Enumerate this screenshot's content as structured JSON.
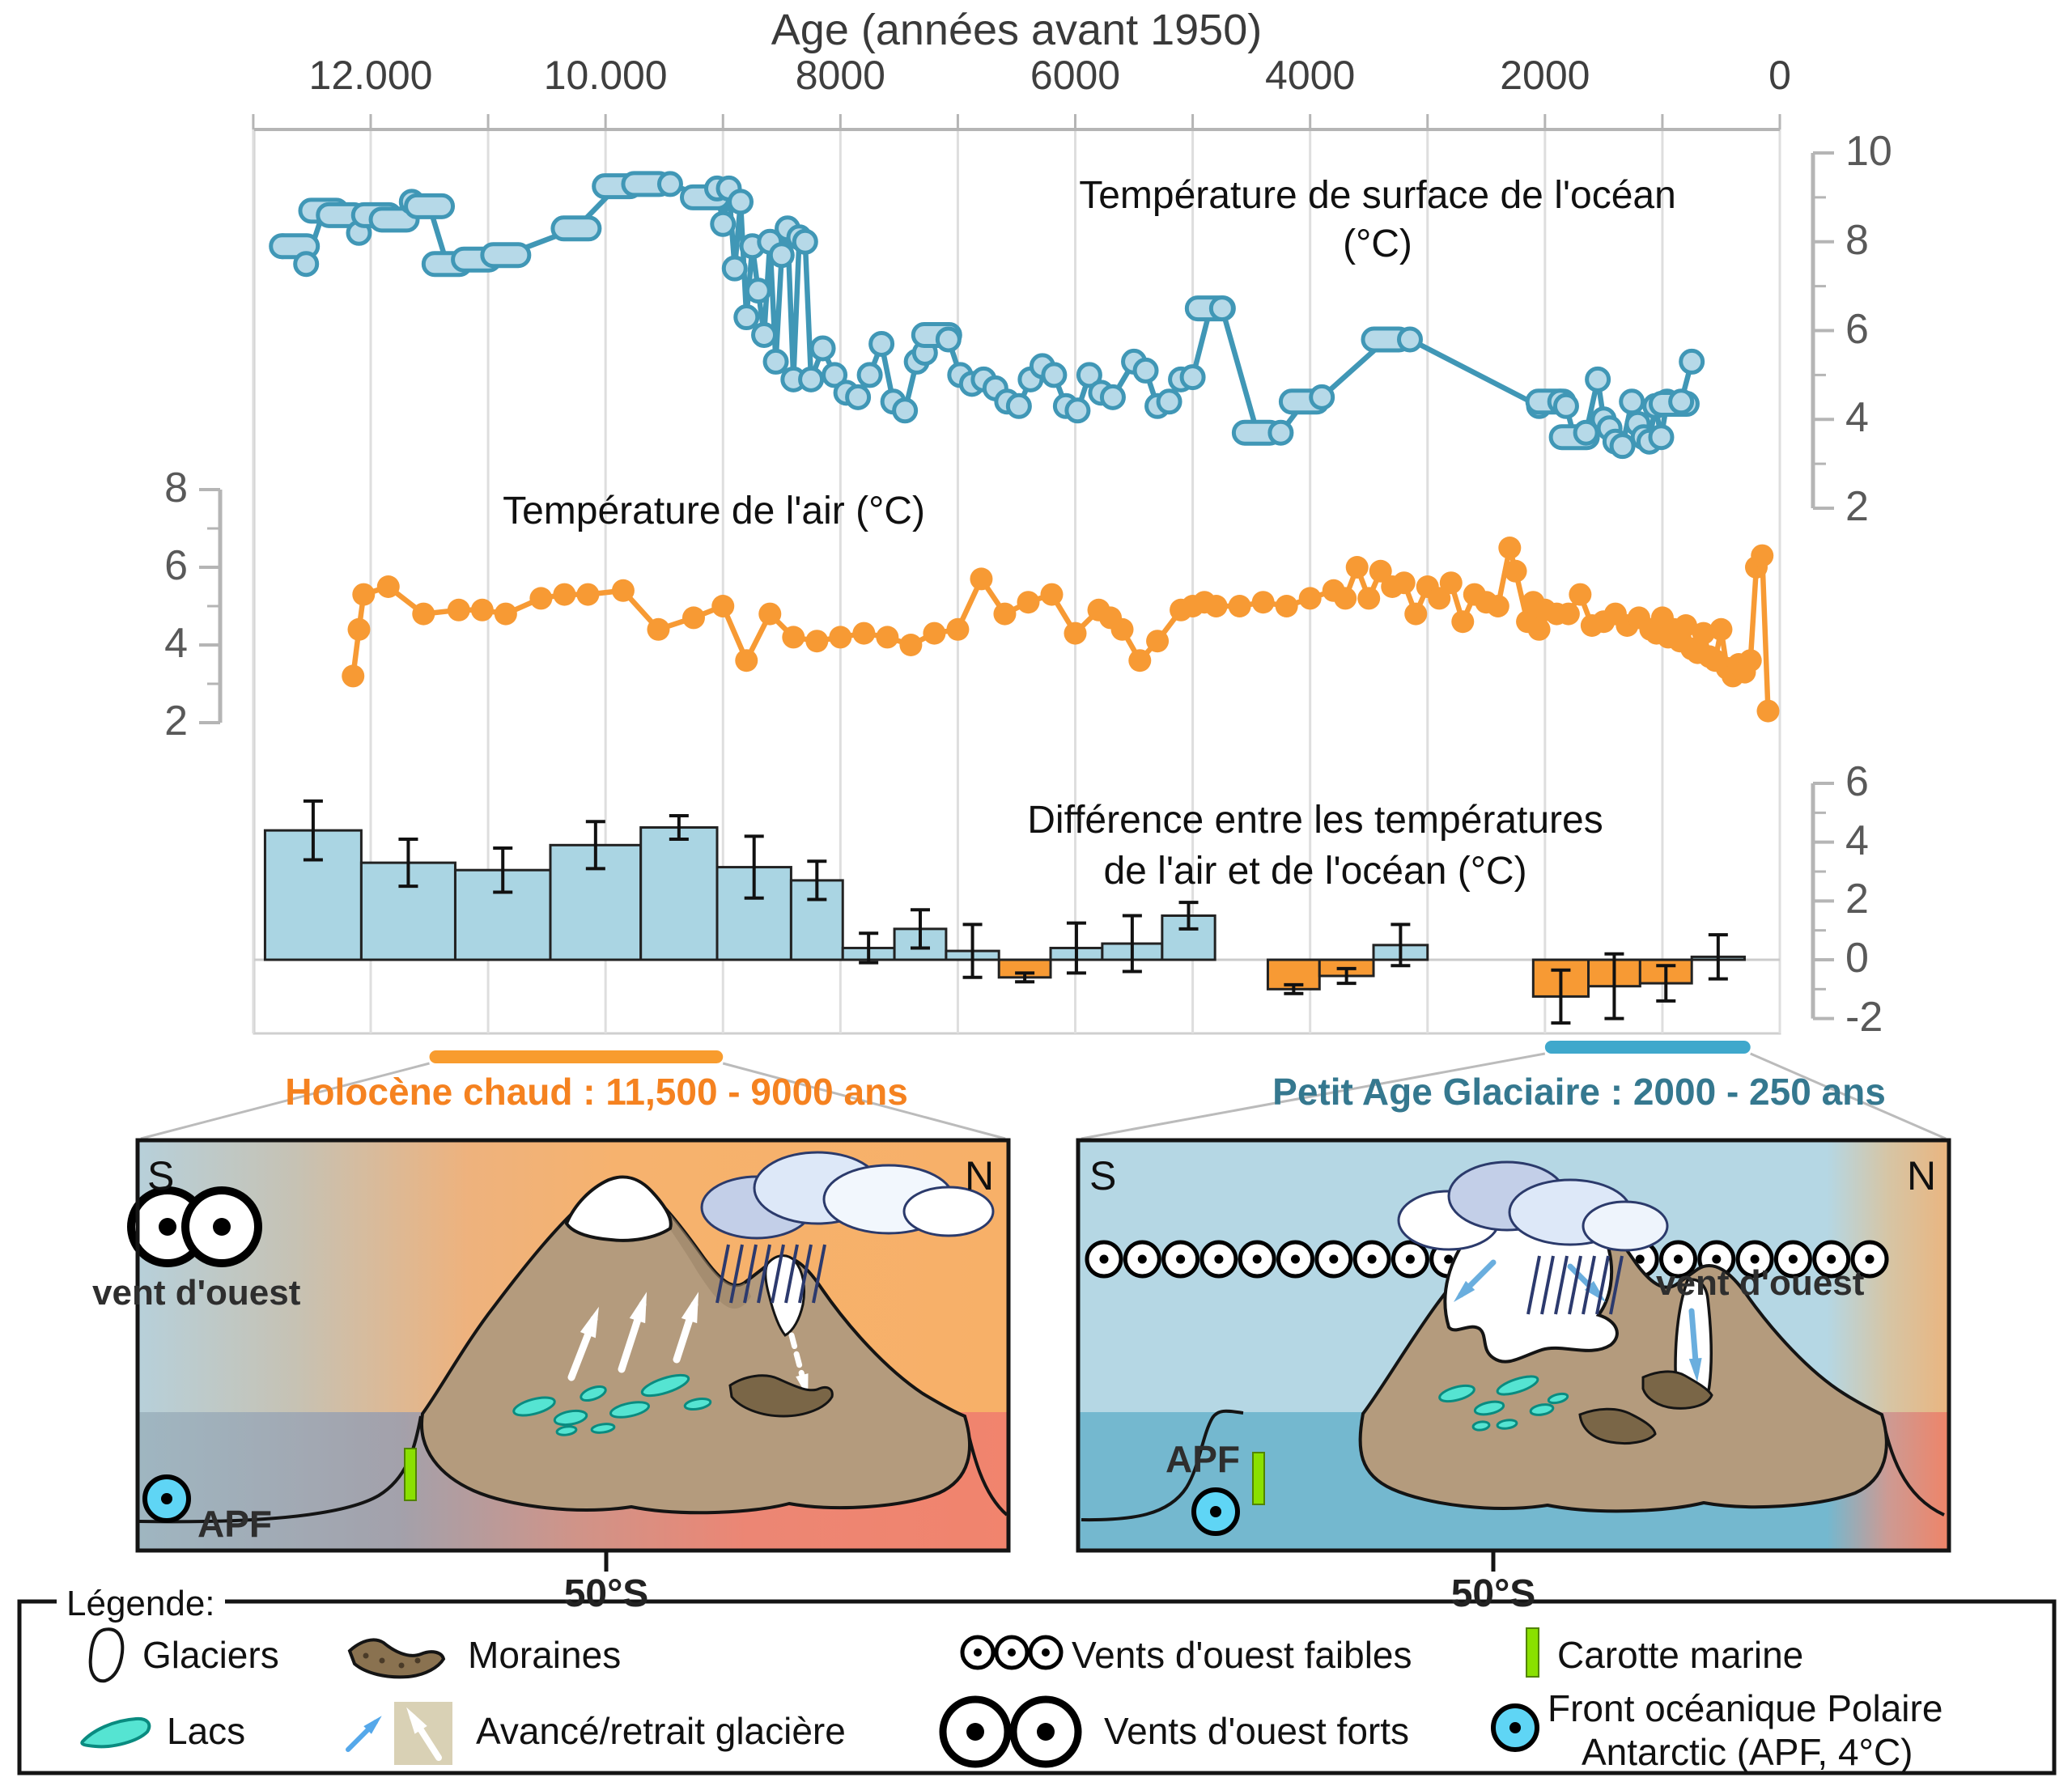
{
  "top_axis": {
    "title": "Age (années avant 1950)",
    "ticks": [
      "12.000",
      "10.000",
      "8000",
      "6000",
      "4000",
      "2000",
      "0"
    ],
    "tick_years": [
      12000,
      10000,
      8000,
      6000,
      4000,
      2000,
      0
    ],
    "minor_step_years": 1000,
    "range_years": [
      13000,
      0
    ]
  },
  "colors": {
    "ocean_line": "#4097b6",
    "ocean_marker_fill": "#b6d9e8",
    "air_line": "#f79a34",
    "bar_positive": "#aad5e3",
    "bar_negative": "#f79a34",
    "grid": "#dedede",
    "frame": "#cfcfcf",
    "axis": "#b5b5b5",
    "lake": "#55e4d2",
    "lake_stroke": "#0a8b80",
    "moraine": "#7a6647",
    "marine_core": "#8ae000",
    "apf": "#5fd5f5",
    "rain": "#2c3a6e",
    "advance_arrow": "#6aaede",
    "retreat_arrow": "#ffffff",
    "mountain": "#b49b7d"
  },
  "chart_data": [
    {
      "id": "ocean",
      "type": "line",
      "title": "Température de surface de l'océan",
      "title_unit": "(°C)",
      "axis_side": "right",
      "ylim": [
        2,
        10
      ],
      "yticks": [
        10,
        8,
        6,
        4,
        2
      ],
      "yticks_minor": [
        9,
        7,
        5,
        3
      ],
      "points": [
        [
          12750,
          7.9
        ],
        [
          12650,
          7.9,
          1
        ],
        [
          12550,
          7.5
        ],
        [
          12400,
          8.7,
          1
        ],
        [
          12250,
          8.6,
          1
        ],
        [
          12100,
          8.2
        ],
        [
          11950,
          8.6,
          1
        ],
        [
          11800,
          8.5,
          1
        ],
        [
          11650,
          8.9
        ],
        [
          11500,
          8.8,
          1
        ],
        [
          11350,
          7.5,
          1
        ],
        [
          11100,
          7.6,
          1
        ],
        [
          10850,
          7.7,
          1
        ],
        [
          10250,
          8.3,
          1
        ],
        [
          9900,
          9.25,
          1
        ],
        [
          9650,
          9.3,
          1
        ],
        [
          9450,
          9.3
        ],
        [
          9150,
          9.0,
          1
        ],
        [
          9050,
          9.2
        ],
        [
          9000,
          8.4
        ],
        [
          8950,
          9.2
        ],
        [
          8900,
          7.4
        ],
        [
          8850,
          8.9
        ],
        [
          8800,
          6.3
        ],
        [
          8750,
          7.9
        ],
        [
          8700,
          6.9
        ],
        [
          8650,
          5.9
        ],
        [
          8600,
          8.0
        ],
        [
          8550,
          5.3
        ],
        [
          8500,
          7.7
        ],
        [
          8450,
          8.3
        ],
        [
          8400,
          4.9
        ],
        [
          8350,
          8.1
        ],
        [
          8300,
          8.0
        ],
        [
          8250,
          4.9
        ],
        [
          8150,
          5.6
        ],
        [
          8050,
          5.0
        ],
        [
          7950,
          4.6
        ],
        [
          7850,
          4.5
        ],
        [
          7750,
          5.0
        ],
        [
          7650,
          5.7
        ],
        [
          7550,
          4.4
        ],
        [
          7450,
          4.2
        ],
        [
          7350,
          5.3
        ],
        [
          7280,
          5.5
        ],
        [
          7180,
          5.9,
          1
        ],
        [
          7080,
          5.8
        ],
        [
          6980,
          5.0
        ],
        [
          6880,
          4.8
        ],
        [
          6780,
          4.9
        ],
        [
          6680,
          4.7
        ],
        [
          6580,
          4.4
        ],
        [
          6480,
          4.3
        ],
        [
          6380,
          4.9
        ],
        [
          6280,
          5.2
        ],
        [
          6180,
          5.0
        ],
        [
          6080,
          4.3
        ],
        [
          5980,
          4.2
        ],
        [
          5880,
          5.0
        ],
        [
          5780,
          4.6
        ],
        [
          5680,
          4.5
        ],
        [
          5500,
          5.3
        ],
        [
          5400,
          5.1
        ],
        [
          5300,
          4.3
        ],
        [
          5200,
          4.4
        ],
        [
          5100,
          4.9
        ],
        [
          5000,
          4.95
        ],
        [
          4850,
          6.5,
          1
        ],
        [
          4750,
          6.5
        ],
        [
          4450,
          3.7,
          1
        ],
        [
          4250,
          3.7
        ],
        [
          4050,
          4.4,
          1
        ],
        [
          3900,
          4.5
        ],
        [
          3350,
          5.8,
          1
        ],
        [
          3150,
          5.8
        ],
        [
          2050,
          4.3
        ],
        [
          1950,
          4.4,
          1
        ],
        [
          1870,
          4.4
        ],
        [
          1820,
          4.3
        ],
        [
          1750,
          3.6,
          1
        ],
        [
          1650,
          3.7
        ],
        [
          1550,
          4.9
        ],
        [
          1500,
          4.0
        ],
        [
          1450,
          3.8
        ],
        [
          1400,
          3.5
        ],
        [
          1340,
          3.4
        ],
        [
          1260,
          4.4
        ],
        [
          1210,
          3.9
        ],
        [
          1160,
          3.6
        ],
        [
          1110,
          3.5
        ],
        [
          1060,
          4.3
        ],
        [
          1010,
          3.6
        ],
        [
          960,
          4.4
        ],
        [
          900,
          4.35,
          1
        ],
        [
          840,
          4.4
        ],
        [
          750,
          5.3
        ]
      ]
    },
    {
      "id": "air",
      "type": "line",
      "title": "Température de l'air (°C)",
      "axis_side": "left",
      "ylim": [
        2,
        8
      ],
      "yticks": [
        8,
        6,
        4,
        2
      ],
      "yticks_minor": [
        7,
        5,
        3
      ],
      "points": [
        [
          12150,
          3.2
        ],
        [
          12100,
          4.4
        ],
        [
          12060,
          5.3
        ],
        [
          11850,
          5.5
        ],
        [
          11550,
          4.8
        ],
        [
          11250,
          4.9
        ],
        [
          11050,
          4.9
        ],
        [
          10850,
          4.8
        ],
        [
          10550,
          5.2
        ],
        [
          10350,
          5.3
        ],
        [
          10150,
          5.3
        ],
        [
          9850,
          5.4
        ],
        [
          9550,
          4.4
        ],
        [
          9250,
          4.7
        ],
        [
          9000,
          5.0
        ],
        [
          8800,
          3.6
        ],
        [
          8600,
          4.8
        ],
        [
          8400,
          4.2
        ],
        [
          8200,
          4.1
        ],
        [
          8000,
          4.2
        ],
        [
          7800,
          4.3
        ],
        [
          7600,
          4.2
        ],
        [
          7400,
          4.0
        ],
        [
          7200,
          4.3
        ],
        [
          7000,
          4.4
        ],
        [
          6800,
          5.7
        ],
        [
          6600,
          4.8
        ],
        [
          6400,
          5.1
        ],
        [
          6200,
          5.3
        ],
        [
          6000,
          4.3
        ],
        [
          5800,
          4.9
        ],
        [
          5700,
          4.7
        ],
        [
          5600,
          4.4
        ],
        [
          5450,
          3.6
        ],
        [
          5300,
          4.1
        ],
        [
          5100,
          4.9
        ],
        [
          5000,
          5.0
        ],
        [
          4900,
          5.1
        ],
        [
          4800,
          5.0
        ],
        [
          4600,
          5.0
        ],
        [
          4400,
          5.1
        ],
        [
          4200,
          5.0
        ],
        [
          4000,
          5.2
        ],
        [
          3800,
          5.4
        ],
        [
          3700,
          5.2
        ],
        [
          3600,
          6.0
        ],
        [
          3500,
          5.2
        ],
        [
          3400,
          5.9
        ],
        [
          3300,
          5.5
        ],
        [
          3200,
          5.6
        ],
        [
          3100,
          4.8
        ],
        [
          3000,
          5.5
        ],
        [
          2900,
          5.2
        ],
        [
          2800,
          5.6
        ],
        [
          2700,
          4.6
        ],
        [
          2600,
          5.3
        ],
        [
          2500,
          5.1
        ],
        [
          2400,
          5.0
        ],
        [
          2300,
          6.5
        ],
        [
          2250,
          5.9
        ],
        [
          2150,
          4.6
        ],
        [
          2100,
          5.1
        ],
        [
          2050,
          4.4
        ],
        [
          2000,
          4.9
        ],
        [
          1900,
          4.8
        ],
        [
          1800,
          4.8
        ],
        [
          1700,
          5.3
        ],
        [
          1600,
          4.5
        ],
        [
          1500,
          4.6
        ],
        [
          1400,
          4.8
        ],
        [
          1300,
          4.5
        ],
        [
          1200,
          4.7
        ],
        [
          1100,
          4.4
        ],
        [
          1050,
          4.3
        ],
        [
          1000,
          4.7
        ],
        [
          950,
          4.2
        ],
        [
          900,
          4.4
        ],
        [
          850,
          4.1
        ],
        [
          800,
          4.5
        ],
        [
          750,
          3.9
        ],
        [
          700,
          3.8
        ],
        [
          650,
          4.3
        ],
        [
          600,
          3.7
        ],
        [
          550,
          3.6
        ],
        [
          500,
          4.4
        ],
        [
          450,
          3.4
        ],
        [
          400,
          3.2
        ],
        [
          350,
          3.5
        ],
        [
          300,
          3.3
        ],
        [
          250,
          3.6
        ],
        [
          200,
          6.0
        ],
        [
          150,
          6.3
        ],
        [
          100,
          2.3
        ]
      ]
    },
    {
      "id": "difference",
      "type": "bar",
      "title_line1": "Différence entre les températures",
      "title_line2": "de l'air et de l'océan (°C)",
      "axis_side": "right",
      "ylim": [
        -2,
        6
      ],
      "yticks": [
        6,
        4,
        2,
        0,
        -2
      ],
      "yticks_minor": [
        5,
        3,
        1,
        -1
      ],
      "bars": [
        {
          "from": 12900,
          "to": 12080,
          "v": 4.4,
          "e": 1.0
        },
        {
          "from": 12080,
          "to": 11280,
          "v": 3.3,
          "e": 0.8
        },
        {
          "from": 11280,
          "to": 10470,
          "v": 3.05,
          "e": 0.75
        },
        {
          "from": 10470,
          "to": 9700,
          "v": 3.9,
          "e": 0.8
        },
        {
          "from": 9700,
          "to": 9050,
          "v": 4.5,
          "e": 0.4
        },
        {
          "from": 9050,
          "to": 8420,
          "v": 3.15,
          "e": 1.05
        },
        {
          "from": 8420,
          "to": 7980,
          "v": 2.7,
          "e": 0.65
        },
        {
          "from": 7980,
          "to": 7540,
          "v": 0.4,
          "e": 0.5
        },
        {
          "from": 7540,
          "to": 7100,
          "v": 1.05,
          "e": 0.65
        },
        {
          "from": 7100,
          "to": 6650,
          "v": 0.3,
          "e": 0.9
        },
        {
          "from": 6650,
          "to": 6210,
          "v": -0.6,
          "e": 0.15
        },
        {
          "from": 6210,
          "to": 5770,
          "v": 0.4,
          "e": 0.85
        },
        {
          "from": 5770,
          "to": 5260,
          "v": 0.55,
          "e": 0.95
        },
        {
          "from": 5260,
          "to": 4810,
          "v": 1.5,
          "e": 0.45
        },
        {
          "from": 4360,
          "to": 3920,
          "v": -1.0,
          "e": 0.15
        },
        {
          "from": 3920,
          "to": 3460,
          "v": -0.55,
          "e": 0.25
        },
        {
          "from": 3460,
          "to": 3000,
          "v": 0.5,
          "e": 0.7
        },
        {
          "from": 2100,
          "to": 1630,
          "v": -1.25,
          "e": 0.9
        },
        {
          "from": 1630,
          "to": 1190,
          "v": -0.9,
          "e": 1.1
        },
        {
          "from": 1190,
          "to": 750,
          "v": -0.8,
          "e": 0.6
        },
        {
          "from": 750,
          "to": 300,
          "v": 0.1,
          "e": 0.75
        }
      ]
    }
  ],
  "periods": [
    {
      "label": "Holocène chaud : 11,500 - 9000 ans",
      "color": "#f58220",
      "bar_color": "#f89c2e",
      "from_years": 11500,
      "to_years": 9000
    },
    {
      "label": "Petit Age Glaciaire : 2000 - 250 ans",
      "color": "#35788f",
      "bar_color": "#3fa8cc",
      "from_years": 2000,
      "to_years": 250
    }
  ],
  "panels": [
    {
      "id": "holocene-warm",
      "south": "S",
      "north": "N",
      "wind_label": "vent d'ouest",
      "wind_type": "strong",
      "apf_label": "APF",
      "lat_label": "50°S"
    },
    {
      "id": "little-ice-age",
      "south": "S",
      "north": "N",
      "wind_label": "vent d'ouest",
      "wind_type": "weak",
      "apf_label": "APF",
      "lat_label": "50°S"
    }
  ],
  "legend": {
    "title": "Légende:",
    "items": [
      {
        "icon": "glacier-icon",
        "label": "Glaciers"
      },
      {
        "icon": "moraine-icon",
        "label": "Moraines"
      },
      {
        "icon": "weak-winds-icon",
        "label": "Vents d'ouest faibles"
      },
      {
        "icon": "marine-core-icon",
        "label": "Carotte marine"
      },
      {
        "icon": "lake-icon",
        "label": "Lacs"
      },
      {
        "icon": "advance-retreat-icon",
        "label": "Avancé/retrait glacière"
      },
      {
        "icon": "strong-winds-icon",
        "label": "Vents d'ouest forts"
      },
      {
        "icon": "apf-icon",
        "label": "Front océanique Polaire",
        "label2": "Antarctic (APF,  4°C)"
      }
    ]
  }
}
